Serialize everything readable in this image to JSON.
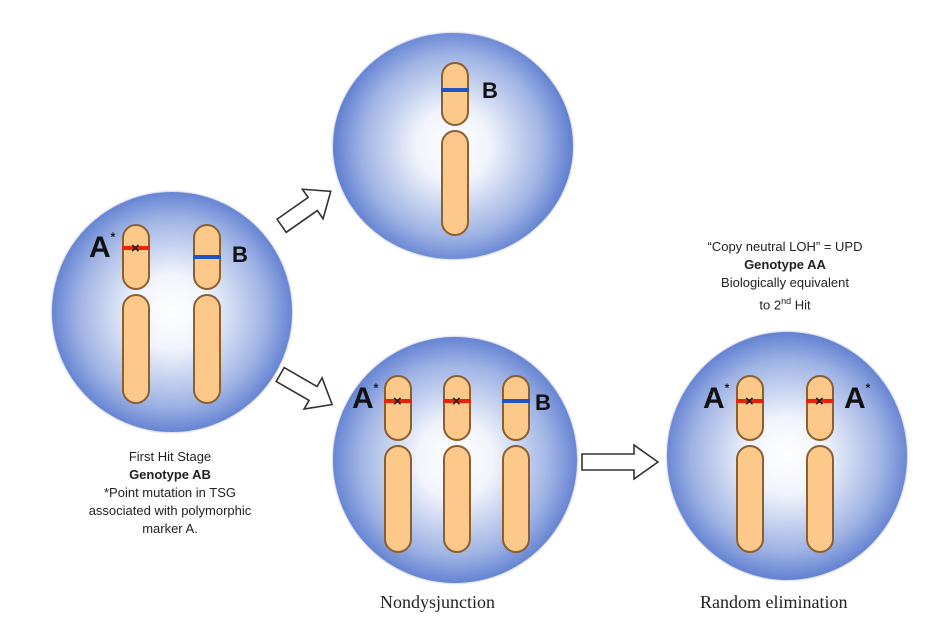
{
  "title_fragment": "",
  "cells": {
    "first_hit": {
      "markers": [
        "A*",
        "B"
      ],
      "caption": {
        "line1": "First Hit Stage",
        "line2": "Genotype AB",
        "line3": "*Point mutation in TSG",
        "line4": "associated with polymorphic",
        "line5": "marker A."
      }
    },
    "loss": {
      "markers": [
        "B"
      ]
    },
    "nondisjunction": {
      "markers": [
        "A*",
        "B"
      ],
      "label": "Nondysjunction"
    },
    "random_elimination": {
      "markers": [
        "A*",
        "A*"
      ],
      "label": "Random elimination",
      "caption": {
        "line1": "“Copy neutral LOH” = UPD",
        "line2": "Genotype AA",
        "line3": "Biologically equivalent",
        "line4": "to 2nd Hit"
      }
    }
  },
  "colors": {
    "chromosome_fill": "#fcc98b",
    "mutation_band": "#e8230a",
    "marker_band": "#1f54c4",
    "cell_edge": "#2a4aa8"
  },
  "icons": [
    "arrow-right-icon",
    "mutation-x-icon"
  ]
}
